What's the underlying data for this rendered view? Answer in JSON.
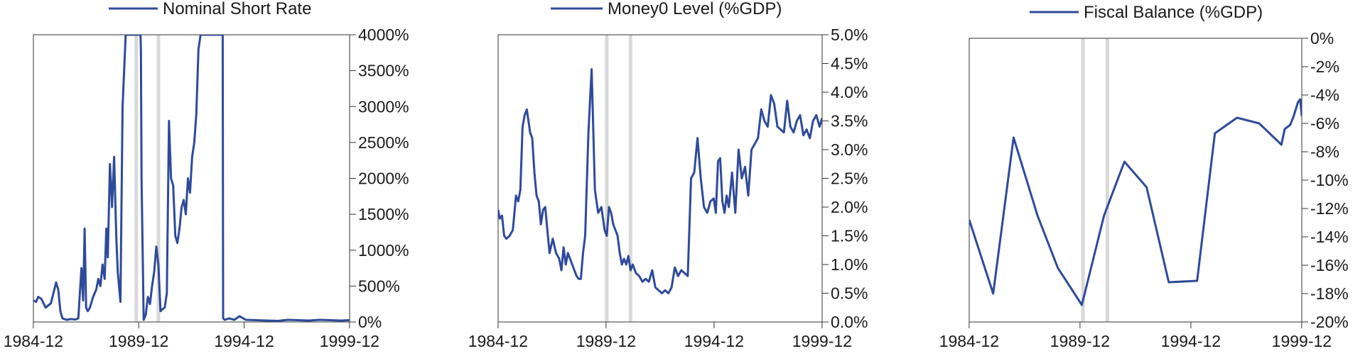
{
  "colors": {
    "series": "#2e4a9a",
    "shade": "#d9d9d9",
    "axis": "#333333",
    "text": "#1a1a1a"
  },
  "chart_data": [
    {
      "type": "line",
      "title": "",
      "xlabel": "",
      "ylabel": "",
      "x_ticks": [
        "1984-12",
        "1989-12",
        "1994-12",
        "1999-12"
      ],
      "y_ticks": [
        "4000%",
        "3500%",
        "3000%",
        "2500%",
        "2000%",
        "1500%",
        "1000%",
        "500%",
        "0%"
      ],
      "ylim": [
        0,
        4000
      ],
      "xlim": [
        1984.92,
        1999.92
      ],
      "legend": "top",
      "shaded_periods": [
        1989.8,
        1990.85
      ],
      "series": [
        {
          "name": "Nominal Short Rate",
          "x": [
            1984.92,
            1985.05,
            1985.15,
            1985.3,
            1985.5,
            1985.75,
            1986.0,
            1986.1,
            1986.2,
            1986.3,
            1986.5,
            1986.7,
            1986.9,
            1987.05,
            1987.2,
            1987.28,
            1987.35,
            1987.42,
            1987.5,
            1987.6,
            1987.75,
            1987.9,
            1988.0,
            1988.1,
            1988.2,
            1988.3,
            1988.38,
            1988.45,
            1988.55,
            1988.65,
            1988.75,
            1988.85,
            1988.92,
            1989.05,
            1989.15,
            1989.3,
            1989.4,
            1989.47,
            1989.52,
            1989.55,
            1989.65,
            1990.0,
            1990.02,
            1990.05,
            1990.15,
            1990.25,
            1990.35,
            1990.45,
            1990.55,
            1990.65,
            1990.75,
            1990.85,
            1990.95,
            1991.05,
            1991.15,
            1991.25,
            1991.35,
            1991.45,
            1991.55,
            1991.65,
            1991.75,
            1991.85,
            1991.95,
            1992.05,
            1992.15,
            1992.25,
            1992.35,
            1992.45,
            1992.55,
            1992.65,
            1992.75,
            1992.85,
            1992.95,
            1993.1,
            1993.2,
            1993.3,
            1993.4,
            1993.45,
            1993.55,
            1993.9,
            1993.92,
            1994.0,
            1994.2,
            1994.45,
            1994.7,
            1995.0,
            1995.5,
            1996.0,
            1996.5,
            1997.0,
            1997.5,
            1998.0,
            1998.5,
            1999.0,
            1999.5,
            1999.92
          ],
          "values": [
            300,
            280,
            350,
            320,
            200,
            260,
            550,
            450,
            150,
            50,
            30,
            40,
            35,
            50,
            750,
            300,
            1300,
            200,
            150,
            200,
            350,
            450,
            600,
            500,
            800,
            600,
            1300,
            900,
            2200,
            1600,
            2300,
            1200,
            700,
            280,
            3000,
            4000,
            4000,
            4000,
            4000,
            4000,
            4000,
            4000,
            3800,
            2000,
            30,
            100,
            350,
            250,
            500,
            700,
            1050,
            800,
            150,
            180,
            200,
            400,
            2800,
            2000,
            1900,
            1200,
            1100,
            1300,
            1600,
            1700,
            1500,
            2000,
            1800,
            2300,
            2500,
            2900,
            3800,
            4000,
            4000,
            4000,
            4000,
            4000,
            4000,
            4000,
            4000,
            4000,
            50,
            30,
            50,
            30,
            80,
            30,
            25,
            20,
            15,
            30,
            25,
            20,
            30,
            25,
            20,
            25
          ]
        }
      ]
    },
    {
      "type": "line",
      "title": "",
      "xlabel": "",
      "ylabel": "",
      "x_ticks": [
        "1984-12",
        "1989-12",
        "1994-12",
        "1999-12"
      ],
      "y_ticks": [
        "5.0%",
        "4.5%",
        "4.0%",
        "3.5%",
        "3.0%",
        "2.5%",
        "2.0%",
        "1.5%",
        "1.0%",
        "0.5%",
        "0.0%"
      ],
      "ylim": [
        0,
        5
      ],
      "xlim": [
        1984.92,
        1999.92
      ],
      "legend": "top",
      "shaded_periods": [
        1989.95,
        1991.05
      ],
      "series": [
        {
          "name": "Money0 Level (%GDP)",
          "x": [
            1984.92,
            1985.0,
            1985.1,
            1985.2,
            1985.3,
            1985.45,
            1985.6,
            1985.75,
            1985.85,
            1985.95,
            1986.05,
            1986.15,
            1986.25,
            1986.4,
            1986.5,
            1986.6,
            1986.7,
            1986.8,
            1986.9,
            1987.0,
            1987.1,
            1987.2,
            1987.3,
            1987.45,
            1987.6,
            1987.75,
            1987.85,
            1987.95,
            1988.05,
            1988.15,
            1988.25,
            1988.35,
            1988.45,
            1988.55,
            1988.65,
            1988.75,
            1988.85,
            1988.95,
            1989.1,
            1989.25,
            1989.4,
            1989.55,
            1989.7,
            1989.85,
            1989.95,
            1990.05,
            1990.15,
            1990.25,
            1990.35,
            1990.45,
            1990.55,
            1990.65,
            1990.75,
            1990.85,
            1990.95,
            1991.05,
            1991.15,
            1991.3,
            1991.45,
            1991.6,
            1991.75,
            1991.9,
            1992.05,
            1992.2,
            1992.35,
            1992.5,
            1992.65,
            1992.8,
            1992.95,
            1993.1,
            1993.25,
            1993.4,
            1993.55,
            1993.7,
            1993.85,
            1994.0,
            1994.15,
            1994.3,
            1994.45,
            1994.6,
            1994.75,
            1994.9,
            1995.0,
            1995.1,
            1995.2,
            1995.3,
            1995.4,
            1995.5,
            1995.6,
            1995.75,
            1995.9,
            1996.05,
            1996.2,
            1996.35,
            1996.5,
            1996.65,
            1996.8,
            1996.95,
            1997.1,
            1997.25,
            1997.4,
            1997.55,
            1997.7,
            1997.85,
            1998.0,
            1998.15,
            1998.3,
            1998.45,
            1998.6,
            1998.75,
            1998.9,
            1999.05,
            1999.2,
            1999.35,
            1999.5,
            1999.65,
            1999.8,
            1999.92
          ],
          "values": [
            1.95,
            1.8,
            1.85,
            1.5,
            1.45,
            1.5,
            1.6,
            2.2,
            2.1,
            2.3,
            3.4,
            3.6,
            3.7,
            3.3,
            3.2,
            2.6,
            2.2,
            2.1,
            1.7,
            1.95,
            2.0,
            1.6,
            1.2,
            1.45,
            1.2,
            1.1,
            0.9,
            1.3,
            1.0,
            1.2,
            1.1,
            1.0,
            0.9,
            0.8,
            0.75,
            0.75,
            1.2,
            1.5,
            3.3,
            4.4,
            2.3,
            1.9,
            2.0,
            1.6,
            1.5,
            2.0,
            1.9,
            1.7,
            1.6,
            1.5,
            1.2,
            1.0,
            1.1,
            1.0,
            1.15,
            0.9,
            1.0,
            0.85,
            0.8,
            0.7,
            0.75,
            0.7,
            0.9,
            0.6,
            0.55,
            0.5,
            0.55,
            0.5,
            0.6,
            0.95,
            0.8,
            0.9,
            0.85,
            0.8,
            2.5,
            2.6,
            3.2,
            2.5,
            2.0,
            1.9,
            2.1,
            2.15,
            1.9,
            2.8,
            2.85,
            2.1,
            1.9,
            2.2,
            2.0,
            2.6,
            1.9,
            3.0,
            2.5,
            2.7,
            2.2,
            3.0,
            3.1,
            3.2,
            3.7,
            3.5,
            3.4,
            3.95,
            3.8,
            3.4,
            3.35,
            3.3,
            3.85,
            3.4,
            3.3,
            3.5,
            3.6,
            3.25,
            3.35,
            3.2,
            3.5,
            3.6,
            3.4,
            3.55
          ]
        }
      ]
    },
    {
      "type": "line",
      "title": "",
      "xlabel": "",
      "ylabel": "",
      "x_ticks": [
        "1984-12",
        "1989-12",
        "1994-12",
        "1999-12"
      ],
      "y_ticks": [
        "0%",
        "-2%",
        "-4%",
        "-6%",
        "-8%",
        "-10%",
        "-12%",
        "-14%",
        "-16%",
        "-18%",
        "-20%"
      ],
      "ylim": [
        -20,
        0
      ],
      "xlim": [
        1984.92,
        1999.92
      ],
      "legend": "top",
      "shaded_periods": [
        1990.05,
        1991.15
      ],
      "series": [
        {
          "name": "Fiscal Balance (%GDP)",
          "x": [
            1984.92,
            1986.0,
            1986.92,
            1988.0,
            1988.92,
            1990.0,
            1991.0,
            1991.92,
            1992.92,
            1993.92,
            1995.2,
            1996.0,
            1997.0,
            1998.0,
            1999.0,
            1999.15,
            1999.4,
            1999.55,
            1999.75,
            1999.85,
            1999.92
          ],
          "values": [
            -12.8,
            -18.0,
            -7.0,
            -12.5,
            -16.2,
            -18.8,
            -12.5,
            -8.7,
            -10.5,
            -17.2,
            -17.1,
            -6.7,
            -5.6,
            -6.0,
            -7.5,
            -6.4,
            -6.1,
            -5.5,
            -4.5,
            -4.3,
            -5.5
          ]
        }
      ]
    }
  ]
}
